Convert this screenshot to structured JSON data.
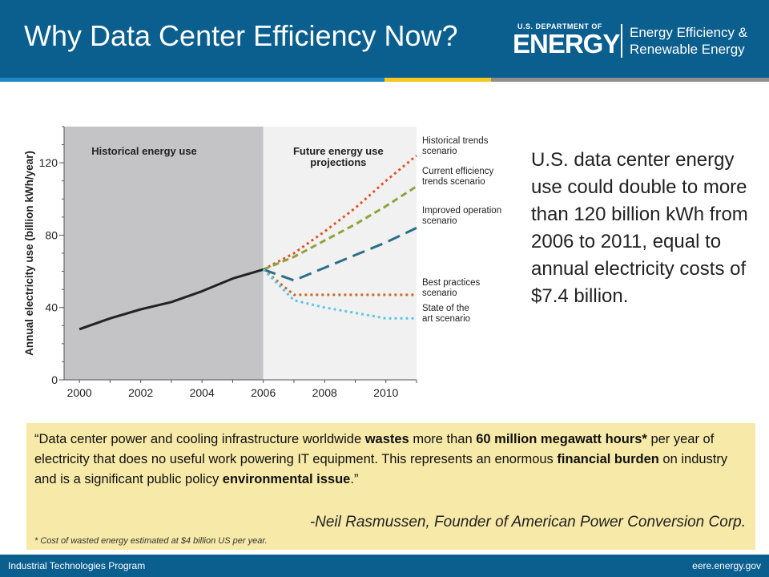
{
  "header": {
    "title": "Why Data Center Efficiency Now?",
    "logo": {
      "dept": "U.S. DEPARTMENT OF",
      "energy": "ENERGY",
      "eere_line1": "Energy Efficiency &",
      "eere_line2": "Renewable Energy"
    }
  },
  "chart_data": {
    "type": "line",
    "ylabel": "Annual electricity use (billion kWh/year)",
    "xlim": [
      2000,
      2011
    ],
    "ylim": [
      0,
      140
    ],
    "x_ticks": [
      2000,
      2002,
      2004,
      2006,
      2008,
      2010
    ],
    "y_ticks": [
      0,
      40,
      80,
      120
    ],
    "regions": [
      {
        "label": "Historical energy use",
        "from": 1999.5,
        "to": 2006
      },
      {
        "label": "Future energy use\nprojections",
        "from": 2006,
        "to": 2011
      }
    ],
    "series": [
      {
        "name": "",
        "style": "solid",
        "color": "#222222",
        "points": [
          [
            2000,
            28
          ],
          [
            2001,
            34
          ],
          [
            2002,
            39
          ],
          [
            2003,
            43
          ],
          [
            2004,
            49
          ],
          [
            2005,
            56
          ],
          [
            2006,
            61
          ]
        ]
      },
      {
        "name": "Historical trends\nscenario",
        "style": "dotted",
        "color": "#e2542a",
        "points": [
          [
            2006,
            61
          ],
          [
            2007,
            70
          ],
          [
            2008,
            82
          ],
          [
            2009,
            95
          ],
          [
            2010,
            110
          ],
          [
            2011,
            124
          ]
        ]
      },
      {
        "name": "Current efficiency\ntrends scenario",
        "style": "dashed",
        "color": "#8fa33b",
        "points": [
          [
            2006,
            61
          ],
          [
            2007,
            68
          ],
          [
            2008,
            77
          ],
          [
            2009,
            86
          ],
          [
            2010,
            96
          ],
          [
            2011,
            107
          ]
        ]
      },
      {
        "name": "Improved operation\nscenario",
        "style": "longdash",
        "color": "#2c6f8a",
        "points": [
          [
            2006,
            61
          ],
          [
            2007,
            55
          ],
          [
            2008,
            62
          ],
          [
            2009,
            69
          ],
          [
            2010,
            76
          ],
          [
            2011,
            84
          ]
        ]
      },
      {
        "name": "Best practices\nscenario",
        "style": "dotted",
        "color": "#c8692b",
        "points": [
          [
            2006,
            61
          ],
          [
            2007,
            47
          ],
          [
            2008,
            47
          ],
          [
            2009,
            47
          ],
          [
            2010,
            47
          ],
          [
            2011,
            47
          ]
        ]
      },
      {
        "name": "State of the\nart scenario",
        "style": "dotted",
        "color": "#5cc6e8",
        "points": [
          [
            2006,
            61
          ],
          [
            2007,
            44
          ],
          [
            2008,
            40
          ],
          [
            2009,
            37
          ],
          [
            2010,
            34
          ],
          [
            2011,
            34
          ]
        ]
      }
    ]
  },
  "side_text": "U.S. data center energy use could double to more than 120 billion kWh from 2006 to 2011, equal to annual electricity costs of $7.4 billion.",
  "quote": {
    "open": "“Data center power and cooling infrastructure worldwide ",
    "b1": "wastes",
    "t2": " more than ",
    "b2": "60 million megawatt hours*",
    "t3": " per year of electricity that does no useful work powering IT equipment. This represents an enormous ",
    "b3": "financial burden",
    "t4": " on industry and is a significant public policy ",
    "b4": "environmental issue",
    "close": ".”",
    "author": "-Neil Rasmussen, Founder of American Power Conversion Corp.",
    "footnote": "* Cost of wasted energy estimated at $4 billion US per year."
  },
  "footer": {
    "left": "Industrial Technologies Program",
    "right": "eere.energy.gov"
  }
}
